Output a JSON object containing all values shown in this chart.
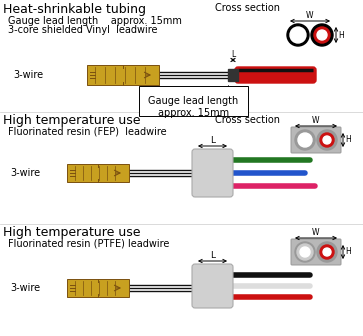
{
  "bg_color": "#ffffff",
  "title_fs": 9,
  "sub_fs": 7,
  "label_fs": 7,
  "dim_fs": 5.5,
  "s1_title": "Heat-shrinkable tubing",
  "s1_line1": "Gauge lead length    approx. 15mm",
  "s1_line2": "3-core shielded Vinyl  leadwire",
  "s1_wire_label": "3-wire",
  "s1_cross": "Cross section",
  "s1_note1": "Gauge lead length",
  "s1_note2": "approx. 15mm",
  "s1_L": "L",
  "s1_W": "W",
  "s1_H": "H",
  "s2_title": "High temperature use",
  "s2_line1": "Fluorinated resin (FEP)  leadwire",
  "s2_wire_label": "3-wire",
  "s2_cross": "Cross section",
  "s2_L": "L",
  "s2_W": "W",
  "s2_H": "H",
  "s3_title": "High temperature use",
  "s3_line1": "Fluorinated resin (PTFE) leadwire",
  "s3_wire_label": "3-wire",
  "s3_L": "L",
  "s3_W": "W",
  "s3_H": "H",
  "gage_fill": "#c8a020",
  "gage_edge": "#7a5010",
  "conn_fill": "#d0d0d0",
  "conn_edge": "#aaaaaa",
  "black": "#111111",
  "red": "#cc1111",
  "green": "#227722",
  "blue": "#2255cc",
  "pink": "#dd2266",
  "gray_cs": "#999999",
  "gray_cs_bg": "#b8b8b8",
  "heat_shrink": "#333333"
}
